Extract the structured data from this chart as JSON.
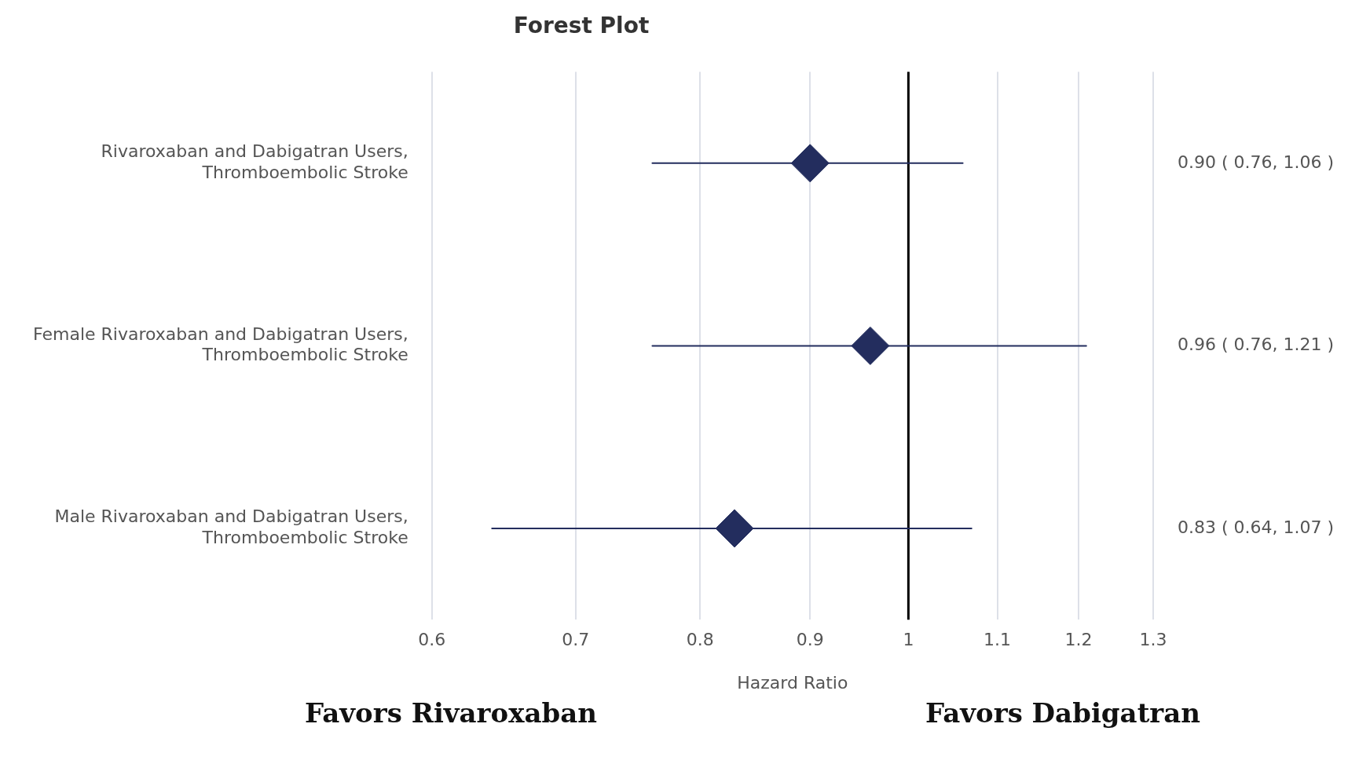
{
  "chart_data": {
    "type": "scatter",
    "title": "Forest Plot",
    "xlabel": "Hazard Ratio",
    "orientation": "horizontal",
    "categories": [
      "Rivaroxaban and Dabigatran Users, Thromboembolic Stroke",
      "Female Rivaroxaban and Dabigatran Users, Thromboembolic Stroke",
      "Male Rivaroxaban and Dabigatran Users, Thromboembolic Stroke"
    ],
    "values": [
      0.9,
      0.96,
      0.83
    ],
    "errors": [
      [
        0.76,
        1.06
      ],
      [
        0.76,
        1.21
      ],
      [
        0.64,
        1.07
      ]
    ],
    "value_labels": [
      "0.90 ( 0.76, 1.06 )",
      "0.96 ( 0.76, 1.21 )",
      "0.83 ( 0.64, 1.07 )"
    ],
    "color": "#232d5e",
    "marker": "diamond",
    "log": "x",
    "grid": "x",
    "xlim": [
      0.6,
      1.3
    ],
    "xticks": [
      0.6,
      0.7,
      0.8,
      0.9,
      1,
      1.1,
      1.2,
      1.3
    ],
    "ref_lines": [
      {
        "axis": "x",
        "value": 1,
        "color": "#000000"
      }
    ],
    "annotations": [
      "Favors Rivaroxaban",
      "Favors Dabigatran"
    ]
  }
}
